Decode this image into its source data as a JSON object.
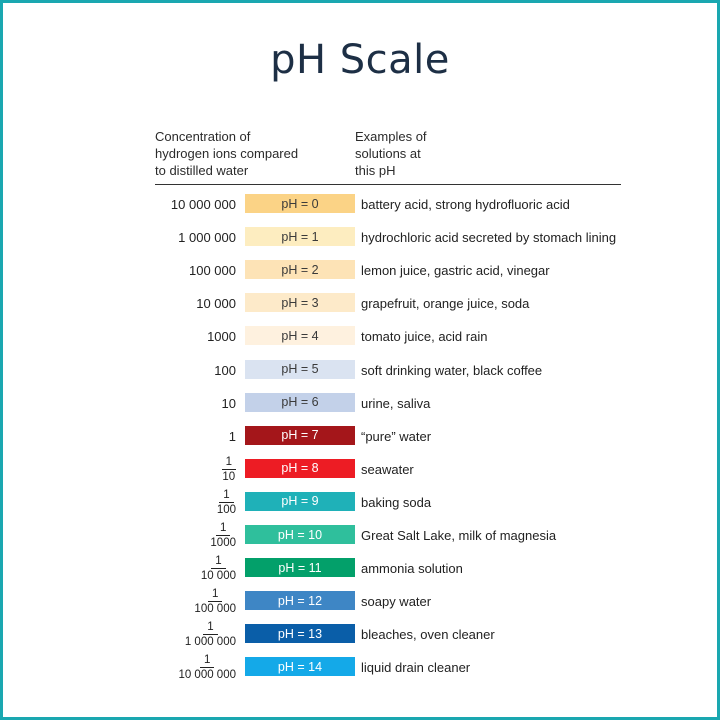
{
  "title": "pH Scale",
  "header": {
    "left": [
      "Concentration of",
      "hydrogen ions compared",
      "to distilled water"
    ],
    "right": [
      "Examples of",
      "solutions at",
      "this pH"
    ]
  },
  "rows": [
    {
      "conc_type": "int",
      "conc": "10 000 000",
      "ph": "pH = 0",
      "bg": "#fbd386",
      "fg": "#3a3a3a",
      "example": "battery acid, strong hydrofluoric acid"
    },
    {
      "conc_type": "int",
      "conc": "1 000 000",
      "ph": "pH = 1",
      "bg": "#fdedc0",
      "fg": "#3a3a3a",
      "example": "hydrochloric acid secreted by stomach lining"
    },
    {
      "conc_type": "int",
      "conc": "100 000",
      "ph": "pH = 2",
      "bg": "#fde3b6",
      "fg": "#3a3a3a",
      "example": "lemon juice, gastric acid, vinegar"
    },
    {
      "conc_type": "int",
      "conc": "10 000",
      "ph": "pH = 3",
      "bg": "#fdeac9",
      "fg": "#3a3a3a",
      "example": "grapefruit, orange juice, soda"
    },
    {
      "conc_type": "int",
      "conc": "1000",
      "ph": "pH = 4",
      "bg": "#fef1df",
      "fg": "#3a3a3a",
      "example": "tomato juice, acid rain"
    },
    {
      "conc_type": "int",
      "conc": "100",
      "ph": "pH = 5",
      "bg": "#dae3f1",
      "fg": "#3a3a3a",
      "example": "soft drinking water, black coffee"
    },
    {
      "conc_type": "int",
      "conc": "10",
      "ph": "pH = 6",
      "bg": "#c3d1e9",
      "fg": "#3a3a3a",
      "example": "urine, saliva"
    },
    {
      "conc_type": "int",
      "conc": "1",
      "ph": "pH = 7",
      "bg": "#a4161a",
      "fg": "#ffffff",
      "example": "“pure” water"
    },
    {
      "conc_type": "frac",
      "num": "1",
      "den": "10",
      "ph": "pH = 8",
      "bg": "#ed1c24",
      "fg": "#ffffff",
      "example": "seawater"
    },
    {
      "conc_type": "frac",
      "num": "1",
      "den": "100",
      "ph": "pH = 9",
      "bg": "#1fb1b8",
      "fg": "#ffffff",
      "example": "baking soda"
    },
    {
      "conc_type": "frac",
      "num": "1",
      "den": "1000",
      "ph": "pH = 10",
      "bg": "#2fbf9c",
      "fg": "#ffffff",
      "example": "Great Salt Lake, milk of magnesia"
    },
    {
      "conc_type": "frac",
      "num": "1",
      "den": "10 000",
      "ph": "pH = 11",
      "bg": "#03a06a",
      "fg": "#ffffff",
      "example": "ammonia solution"
    },
    {
      "conc_type": "frac",
      "num": "1",
      "den": "100 000",
      "ph": "pH = 12",
      "bg": "#3e86c5",
      "fg": "#ffffff",
      "example": "soapy water"
    },
    {
      "conc_type": "frac",
      "num": "1",
      "den": "1 000 000",
      "ph": "pH = 13",
      "bg": "#0a5ea8",
      "fg": "#ffffff",
      "example": "bleaches, oven cleaner"
    },
    {
      "conc_type": "frac",
      "num": "1",
      "den": "10 000 000",
      "ph": "pH = 14",
      "bg": "#14a9e8",
      "fg": "#ffffff",
      "example": "liquid drain cleaner"
    }
  ]
}
